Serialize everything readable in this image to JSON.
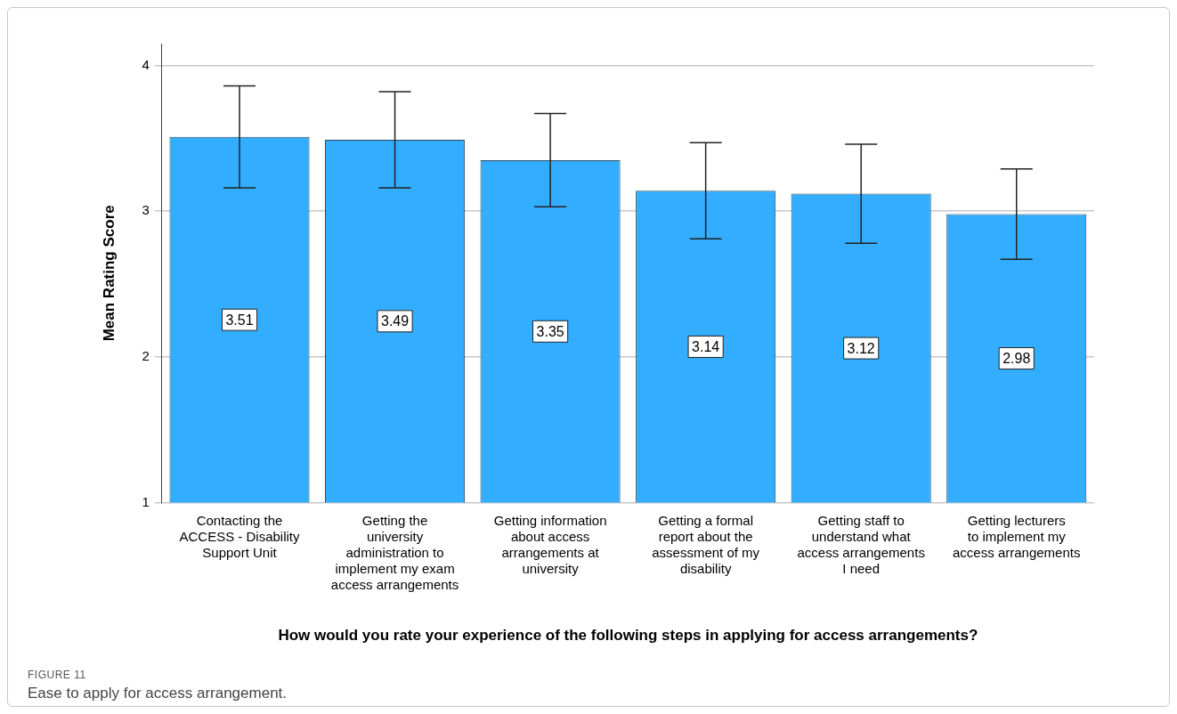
{
  "chart_data": {
    "type": "bar",
    "xlabel": "How would you rate your experience of the following steps in applying for access arrangements?",
    "ylabel": "Mean Rating Score",
    "categories": [
      "Contacting the ACCESS - Disability Support Unit",
      "Getting the university administration to implement my exam access arrangements",
      "Getting information about access arrangements at university",
      "Getting a formal report about the assessment of my disability",
      "Getting staff to understand what access arrangements I need",
      "Getting lecturers to implement my access arrangements"
    ],
    "values": [
      3.51,
      3.49,
      3.35,
      3.14,
      3.12,
      2.98
    ],
    "errors": [
      [
        3.16,
        3.86
      ],
      [
        3.16,
        3.82
      ],
      [
        3.03,
        3.67
      ],
      [
        2.81,
        3.47
      ],
      [
        2.78,
        3.46
      ],
      [
        2.67,
        3.29
      ]
    ],
    "color": "#33adff",
    "data_labels": true,
    "ylim": [
      1,
      4.15
    ],
    "yticks": [
      1,
      2,
      3,
      4
    ],
    "grid": "y",
    "annotations": [
      "FIGURE 11",
      "Ease to apply for access arrangement."
    ]
  }
}
